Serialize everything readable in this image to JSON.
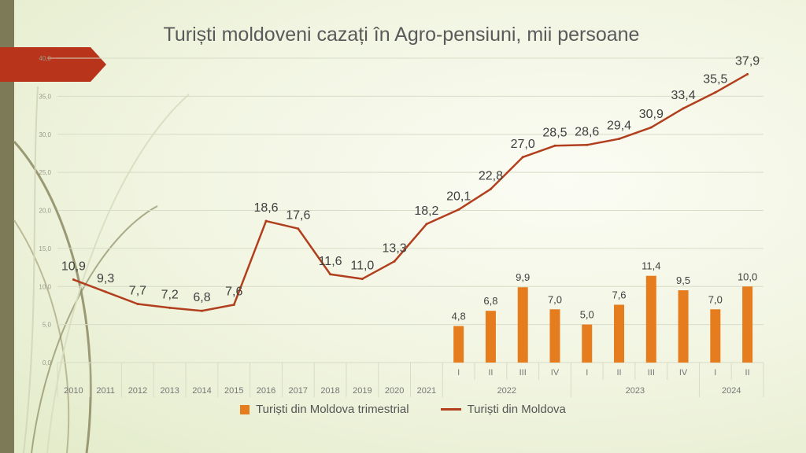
{
  "slide": {
    "title": "Turiști moldoveni cazați în Agro-pensiuni, mii persoane"
  },
  "colors": {
    "bar": "#e57c1e",
    "line": "#b13f1e",
    "arrow": "#b8341a",
    "grid": "#d7dcc6",
    "axis_text": "#777777",
    "label_text": "#404040"
  },
  "chart_data": {
    "type": "bar",
    "title": "Turiști moldoveni cazați în Agro-pensiuni, mii persoane",
    "categories": [
      "2010",
      "2011",
      "2012",
      "2013",
      "2014",
      "2015",
      "2016",
      "2017",
      "2018",
      "2019",
      "2020",
      "2021",
      "I",
      "II",
      "III",
      "IV",
      "I",
      "II",
      "III",
      "IV",
      "I",
      "II"
    ],
    "group_labels": [
      {
        "label": "2022",
        "start": 12,
        "end": 15
      },
      {
        "label": "2023",
        "start": 16,
        "end": 19
      },
      {
        "label": "2024",
        "start": 20,
        "end": 21
      }
    ],
    "y_ticks": [
      "0,0",
      "5,0",
      "10,0",
      "15,0",
      "20,0",
      "25,0",
      "30,0",
      "35,0",
      "40,0"
    ],
    "ylim": [
      0,
      40
    ],
    "grid": true,
    "legend_position": "bottom",
    "series": [
      {
        "name": "Turiști din Moldova trimestrial",
        "type": "bar",
        "values": [
          null,
          null,
          null,
          null,
          null,
          null,
          null,
          null,
          null,
          null,
          null,
          null,
          4.8,
          6.8,
          9.9,
          7.0,
          5.0,
          7.6,
          11.4,
          9.5,
          7.0,
          10.0
        ],
        "labels": [
          "",
          "",
          "",
          "",
          "",
          "",
          "",
          "",
          "",
          "",
          "",
          "",
          "4,8",
          "6,8",
          "9,9",
          "7,0",
          "5,0",
          "7,6",
          "11,4",
          "9,5",
          "7,0",
          "10,0"
        ]
      },
      {
        "name": "Turiști din Moldova",
        "type": "line",
        "values": [
          10.9,
          9.3,
          7.7,
          7.2,
          6.8,
          7.6,
          18.6,
          17.6,
          11.6,
          11.0,
          13.3,
          18.2,
          20.1,
          22.8,
          27.0,
          28.5,
          28.6,
          29.4,
          30.9,
          33.4,
          35.5,
          37.9
        ],
        "labels": [
          "10,9",
          "9,3",
          "7,7",
          "7,2",
          "6,8",
          "7,6",
          "18,6",
          "17,6",
          "11,6",
          "11,0",
          "13,3",
          "18,2",
          "20,1",
          "22,8",
          "27,0",
          "28,5",
          "28,6",
          "29,4",
          "30,9",
          "33,4",
          "35,5",
          "37,9"
        ]
      }
    ]
  }
}
